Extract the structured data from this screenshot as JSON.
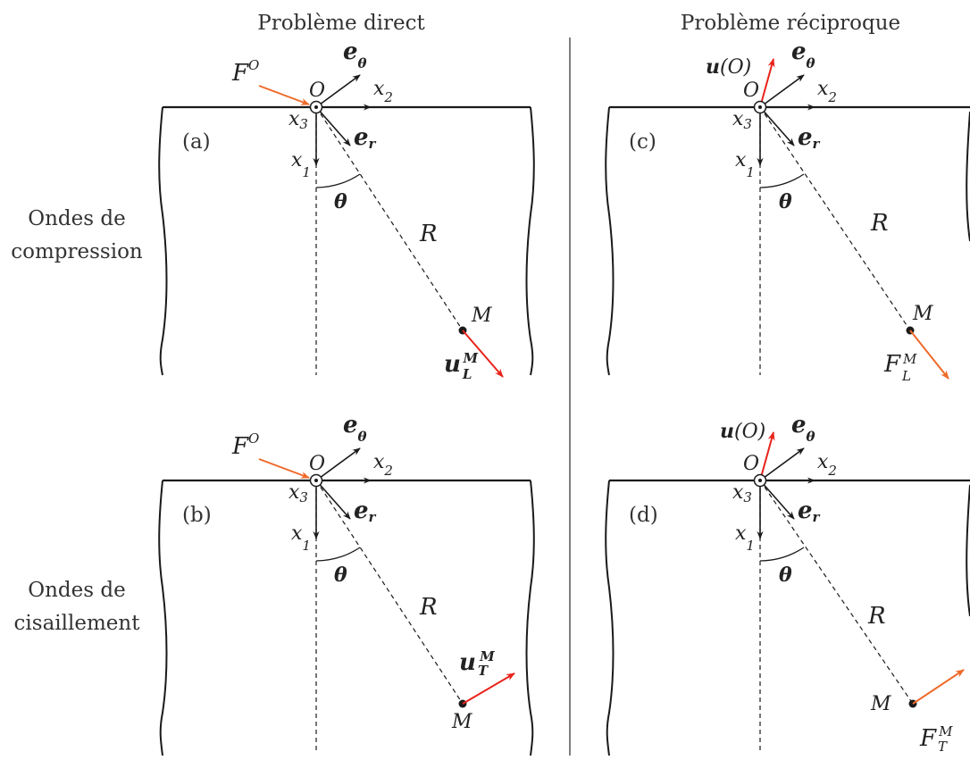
{
  "headers": {
    "direct": "Problème direct",
    "reciprocal": "Problème réciproque"
  },
  "rows": {
    "compression": [
      "Ondes de",
      "compression"
    ],
    "shear": [
      "Ondes de",
      "cisaillement"
    ]
  },
  "panels": [
    {
      "tag": "(a)"
    },
    {
      "tag": "(b)"
    },
    {
      "tag": "(c)"
    },
    {
      "tag": "(d)"
    }
  ],
  "symbols": {
    "F": "F",
    "O": "O",
    "e": "e",
    "theta": "θ",
    "r": "r",
    "x": "x",
    "sub1": "1",
    "sub2": "2",
    "sub3": "3",
    "R": "R",
    "M": "M",
    "u": "u",
    "L": "L",
    "T": "T",
    "uO": "(O)"
  },
  "colors": {
    "orange": "#ee6a2a",
    "red": "#e8231b",
    "line": "#1a1a1a"
  }
}
